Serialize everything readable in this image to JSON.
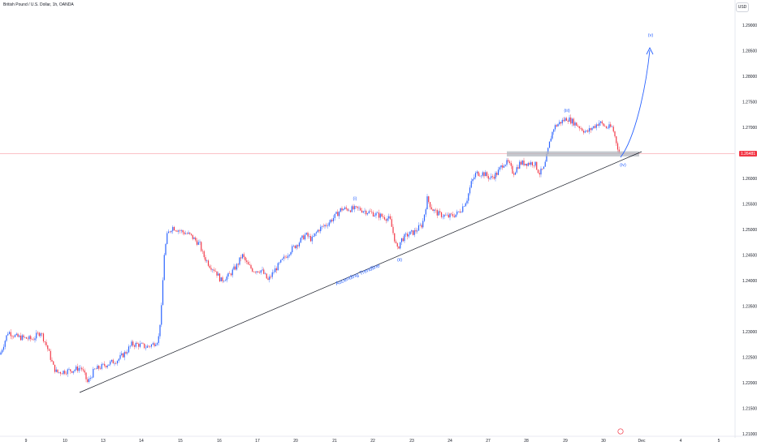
{
  "header": {
    "title": "British Pound / U.S. Dollar, 1h, OANDA",
    "currency": "USD"
  },
  "current_price": {
    "label": "1.26481",
    "value": 1.26481,
    "color": "#f23645"
  },
  "colors": {
    "up": "#2962ff",
    "down": "#f23645",
    "trendline": "#131722",
    "projection": "#2962ff",
    "wave_label": "#2962ff",
    "zone": "#b2b5be"
  },
  "chart_data": {
    "type": "candlestick",
    "y_axis": {
      "ticks": [
        "1.29000",
        "1.28500",
        "1.28000",
        "1.27500",
        "1.27000",
        "1.26481",
        "1.26000",
        "1.25500",
        "1.25000",
        "1.24500",
        "1.24000",
        "1.23500",
        "1.23000",
        "1.22500",
        "1.22000",
        "1.21500",
        "1.21000"
      ],
      "range": [
        1.209,
        1.2925
      ],
      "side": "right"
    },
    "x_axis": {
      "ticks": [
        "9",
        "10",
        "13",
        "14",
        "15",
        "16",
        "17",
        "20",
        "21",
        "22",
        "23",
        "24",
        "27",
        "28",
        "29",
        "30",
        "Dec",
        "4",
        "5"
      ]
    },
    "price_path": [
      [
        0,
        1.2255
      ],
      [
        10,
        1.23
      ],
      [
        20,
        1.229
      ],
      [
        40,
        1.2285
      ],
      [
        50,
        1.23
      ],
      [
        58,
        1.227
      ],
      [
        66,
        1.223
      ],
      [
        70,
        1.222
      ],
      [
        90,
        1.2225
      ],
      [
        100,
        1.223
      ],
      [
        108,
        1.22
      ],
      [
        116,
        1.2225
      ],
      [
        130,
        1.2235
      ],
      [
        145,
        1.2245
      ],
      [
        155,
        1.226
      ],
      [
        162,
        1.2275
      ],
      [
        170,
        1.2275
      ],
      [
        180,
        1.227
      ],
      [
        188,
        1.2275
      ],
      [
        195,
        1.2285
      ],
      [
        199,
        1.235
      ],
      [
        202,
        1.245
      ],
      [
        206,
        1.249
      ],
      [
        212,
        1.2505
      ],
      [
        225,
        1.2495
      ],
      [
        233,
        1.249
      ],
      [
        240,
        1.248
      ],
      [
        246,
        1.247
      ],
      [
        250,
        1.245
      ],
      [
        258,
        1.243
      ],
      [
        265,
        1.242
      ],
      [
        272,
        1.24
      ],
      [
        282,
        1.241
      ],
      [
        292,
        1.243
      ],
      [
        298,
        1.245
      ],
      [
        305,
        1.243
      ],
      [
        312,
        1.242
      ],
      [
        322,
        1.242
      ],
      [
        330,
        1.24
      ],
      [
        338,
        1.242
      ],
      [
        348,
        1.244
      ],
      [
        358,
        1.246
      ],
      [
        368,
        1.2475
      ],
      [
        376,
        1.249
      ],
      [
        384,
        1.248
      ],
      [
        392,
        1.25
      ],
      [
        402,
        1.251
      ],
      [
        412,
        1.2525
      ],
      [
        420,
        1.254
      ],
      [
        432,
        1.254
      ],
      [
        442,
        1.254
      ],
      [
        452,
        1.2535
      ],
      [
        462,
        1.253
      ],
      [
        472,
        1.2525
      ],
      [
        480,
        1.252
      ],
      [
        486,
        1.248
      ],
      [
        489,
        1.246
      ],
      [
        494,
        1.248
      ],
      [
        502,
        1.249
      ],
      [
        510,
        1.2495
      ],
      [
        520,
        1.251
      ],
      [
        526,
        1.256
      ],
      [
        532,
        1.254
      ],
      [
        540,
        1.253
      ],
      [
        552,
        1.2525
      ],
      [
        562,
        1.253
      ],
      [
        568,
        1.254
      ],
      [
        575,
        1.256
      ],
      [
        580,
        1.259
      ],
      [
        586,
        1.261
      ],
      [
        595,
        1.261
      ],
      [
        604,
        1.26
      ],
      [
        612,
        1.261
      ],
      [
        620,
        1.263
      ],
      [
        626,
        1.263
      ],
      [
        632,
        1.261
      ],
      [
        640,
        1.263
      ],
      [
        650,
        1.263
      ],
      [
        658,
        1.263
      ],
      [
        664,
        1.261
      ],
      [
        670,
        1.262
      ],
      [
        674,
        1.265
      ],
      [
        678,
        1.268
      ],
      [
        682,
        1.27
      ],
      [
        690,
        1.271
      ],
      [
        698,
        1.2718
      ],
      [
        706,
        1.271
      ],
      [
        714,
        1.27
      ],
      [
        722,
        1.269
      ],
      [
        730,
        1.27
      ],
      [
        738,
        1.271
      ],
      [
        746,
        1.27
      ],
      [
        754,
        1.27
      ],
      [
        759,
        1.267
      ],
      [
        763,
        1.2646
      ]
    ],
    "support_zone": {
      "price_low": 1.2643,
      "price_high": 1.2653
    },
    "trendline_label": "Ascending Trendline",
    "wave_labels": [
      {
        "text": "(i)",
        "price": 1.255,
        "anchor": "above"
      },
      {
        "text": "(ii)",
        "price": 1.246,
        "anchor": "below"
      },
      {
        "text": "(iii)",
        "price": 1.2722,
        "anchor": "above"
      },
      {
        "text": "(iv)",
        "price": 1.2646,
        "anchor": "below"
      },
      {
        "text": "(v)",
        "price": 1.287,
        "anchor": "above"
      }
    ],
    "grid": false,
    "legend": "none"
  }
}
